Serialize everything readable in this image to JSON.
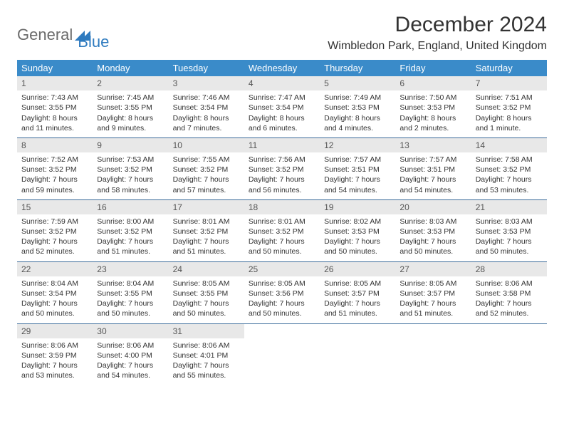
{
  "logo": {
    "part1": "General",
    "part2": "Blue"
  },
  "title": "December 2024",
  "location": "Wimbledon Park, England, United Kingdom",
  "colors": {
    "header_bg": "#3a8bc9",
    "header_text": "#ffffff",
    "daynum_bg": "#e8e8e8",
    "row_border": "#3a6a9a",
    "logo_gray": "#6b6b6b",
    "logo_blue": "#2f7bbf"
  },
  "weekdays": [
    "Sunday",
    "Monday",
    "Tuesday",
    "Wednesday",
    "Thursday",
    "Friday",
    "Saturday"
  ],
  "weeks": [
    [
      {
        "n": "1",
        "sunrise": "Sunrise: 7:43 AM",
        "sunset": "Sunset: 3:55 PM",
        "daylight": "Daylight: 8 hours and 11 minutes."
      },
      {
        "n": "2",
        "sunrise": "Sunrise: 7:45 AM",
        "sunset": "Sunset: 3:55 PM",
        "daylight": "Daylight: 8 hours and 9 minutes."
      },
      {
        "n": "3",
        "sunrise": "Sunrise: 7:46 AM",
        "sunset": "Sunset: 3:54 PM",
        "daylight": "Daylight: 8 hours and 7 minutes."
      },
      {
        "n": "4",
        "sunrise": "Sunrise: 7:47 AM",
        "sunset": "Sunset: 3:54 PM",
        "daylight": "Daylight: 8 hours and 6 minutes."
      },
      {
        "n": "5",
        "sunrise": "Sunrise: 7:49 AM",
        "sunset": "Sunset: 3:53 PM",
        "daylight": "Daylight: 8 hours and 4 minutes."
      },
      {
        "n": "6",
        "sunrise": "Sunrise: 7:50 AM",
        "sunset": "Sunset: 3:53 PM",
        "daylight": "Daylight: 8 hours and 2 minutes."
      },
      {
        "n": "7",
        "sunrise": "Sunrise: 7:51 AM",
        "sunset": "Sunset: 3:52 PM",
        "daylight": "Daylight: 8 hours and 1 minute."
      }
    ],
    [
      {
        "n": "8",
        "sunrise": "Sunrise: 7:52 AM",
        "sunset": "Sunset: 3:52 PM",
        "daylight": "Daylight: 7 hours and 59 minutes."
      },
      {
        "n": "9",
        "sunrise": "Sunrise: 7:53 AM",
        "sunset": "Sunset: 3:52 PM",
        "daylight": "Daylight: 7 hours and 58 minutes."
      },
      {
        "n": "10",
        "sunrise": "Sunrise: 7:55 AM",
        "sunset": "Sunset: 3:52 PM",
        "daylight": "Daylight: 7 hours and 57 minutes."
      },
      {
        "n": "11",
        "sunrise": "Sunrise: 7:56 AM",
        "sunset": "Sunset: 3:52 PM",
        "daylight": "Daylight: 7 hours and 56 minutes."
      },
      {
        "n": "12",
        "sunrise": "Sunrise: 7:57 AM",
        "sunset": "Sunset: 3:51 PM",
        "daylight": "Daylight: 7 hours and 54 minutes."
      },
      {
        "n": "13",
        "sunrise": "Sunrise: 7:57 AM",
        "sunset": "Sunset: 3:51 PM",
        "daylight": "Daylight: 7 hours and 54 minutes."
      },
      {
        "n": "14",
        "sunrise": "Sunrise: 7:58 AM",
        "sunset": "Sunset: 3:52 PM",
        "daylight": "Daylight: 7 hours and 53 minutes."
      }
    ],
    [
      {
        "n": "15",
        "sunrise": "Sunrise: 7:59 AM",
        "sunset": "Sunset: 3:52 PM",
        "daylight": "Daylight: 7 hours and 52 minutes."
      },
      {
        "n": "16",
        "sunrise": "Sunrise: 8:00 AM",
        "sunset": "Sunset: 3:52 PM",
        "daylight": "Daylight: 7 hours and 51 minutes."
      },
      {
        "n": "17",
        "sunrise": "Sunrise: 8:01 AM",
        "sunset": "Sunset: 3:52 PM",
        "daylight": "Daylight: 7 hours and 51 minutes."
      },
      {
        "n": "18",
        "sunrise": "Sunrise: 8:01 AM",
        "sunset": "Sunset: 3:52 PM",
        "daylight": "Daylight: 7 hours and 50 minutes."
      },
      {
        "n": "19",
        "sunrise": "Sunrise: 8:02 AM",
        "sunset": "Sunset: 3:53 PM",
        "daylight": "Daylight: 7 hours and 50 minutes."
      },
      {
        "n": "20",
        "sunrise": "Sunrise: 8:03 AM",
        "sunset": "Sunset: 3:53 PM",
        "daylight": "Daylight: 7 hours and 50 minutes."
      },
      {
        "n": "21",
        "sunrise": "Sunrise: 8:03 AM",
        "sunset": "Sunset: 3:53 PM",
        "daylight": "Daylight: 7 hours and 50 minutes."
      }
    ],
    [
      {
        "n": "22",
        "sunrise": "Sunrise: 8:04 AM",
        "sunset": "Sunset: 3:54 PM",
        "daylight": "Daylight: 7 hours and 50 minutes."
      },
      {
        "n": "23",
        "sunrise": "Sunrise: 8:04 AM",
        "sunset": "Sunset: 3:55 PM",
        "daylight": "Daylight: 7 hours and 50 minutes."
      },
      {
        "n": "24",
        "sunrise": "Sunrise: 8:05 AM",
        "sunset": "Sunset: 3:55 PM",
        "daylight": "Daylight: 7 hours and 50 minutes."
      },
      {
        "n": "25",
        "sunrise": "Sunrise: 8:05 AM",
        "sunset": "Sunset: 3:56 PM",
        "daylight": "Daylight: 7 hours and 50 minutes."
      },
      {
        "n": "26",
        "sunrise": "Sunrise: 8:05 AM",
        "sunset": "Sunset: 3:57 PM",
        "daylight": "Daylight: 7 hours and 51 minutes."
      },
      {
        "n": "27",
        "sunrise": "Sunrise: 8:05 AM",
        "sunset": "Sunset: 3:57 PM",
        "daylight": "Daylight: 7 hours and 51 minutes."
      },
      {
        "n": "28",
        "sunrise": "Sunrise: 8:06 AM",
        "sunset": "Sunset: 3:58 PM",
        "daylight": "Daylight: 7 hours and 52 minutes."
      }
    ],
    [
      {
        "n": "29",
        "sunrise": "Sunrise: 8:06 AM",
        "sunset": "Sunset: 3:59 PM",
        "daylight": "Daylight: 7 hours and 53 minutes."
      },
      {
        "n": "30",
        "sunrise": "Sunrise: 8:06 AM",
        "sunset": "Sunset: 4:00 PM",
        "daylight": "Daylight: 7 hours and 54 minutes."
      },
      {
        "n": "31",
        "sunrise": "Sunrise: 8:06 AM",
        "sunset": "Sunset: 4:01 PM",
        "daylight": "Daylight: 7 hours and 55 minutes."
      },
      null,
      null,
      null,
      null
    ]
  ]
}
